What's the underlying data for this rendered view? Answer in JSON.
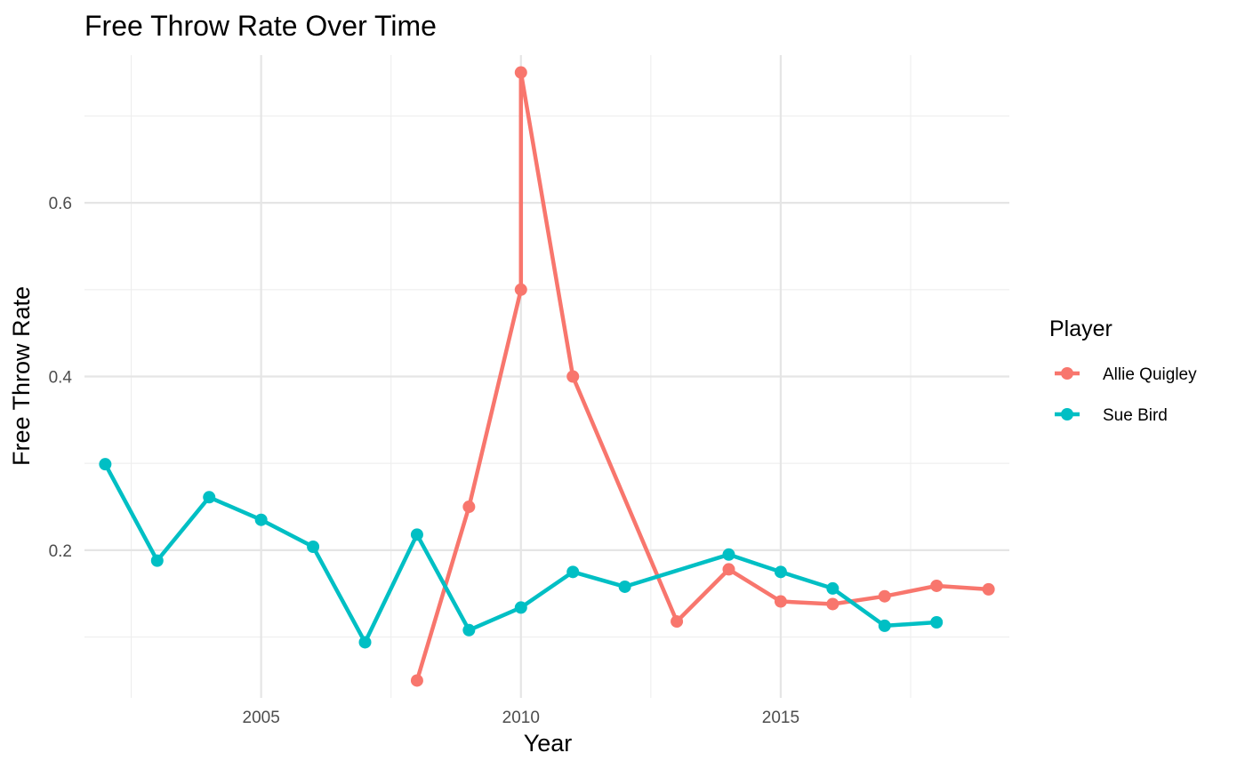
{
  "chart_data": {
    "type": "line",
    "title": "Free Throw Rate Over Time",
    "xlabel": "Year",
    "ylabel": "Free Throw Rate",
    "xlim": [
      2001.6,
      2019.4
    ],
    "ylim": [
      0.03,
      0.77
    ],
    "x_ticks": [
      2005,
      2010,
      2015
    ],
    "y_ticks": [
      0.2,
      0.4,
      0.6
    ],
    "grid": true,
    "legend_title": "Player",
    "legend_position": "right",
    "series": [
      {
        "name": "Allie Quigley",
        "color": "#F8766D",
        "points": [
          [
            2008,
            0.05
          ],
          [
            2009,
            0.25
          ],
          [
            2010,
            0.5
          ],
          [
            2010,
            0.75
          ],
          [
            2011,
            0.4
          ],
          [
            2013,
            0.118
          ],
          [
            2014,
            0.178
          ],
          [
            2015,
            0.141
          ],
          [
            2016,
            0.138
          ],
          [
            2017,
            0.147
          ],
          [
            2018,
            0.159
          ],
          [
            2019,
            0.155
          ]
        ]
      },
      {
        "name": "Sue Bird",
        "color": "#00BFC4",
        "points": [
          [
            2002,
            0.299
          ],
          [
            2003,
            0.188
          ],
          [
            2004,
            0.261
          ],
          [
            2005,
            0.235
          ],
          [
            2006,
            0.204
          ],
          [
            2007,
            0.094
          ],
          [
            2008,
            0.218
          ],
          [
            2009,
            0.108
          ],
          [
            2010,
            0.134
          ],
          [
            2011,
            0.175
          ],
          [
            2012,
            0.158
          ],
          [
            2014,
            0.195
          ],
          [
            2015,
            0.175
          ],
          [
            2016,
            0.156
          ],
          [
            2017,
            0.113
          ],
          [
            2018,
            0.117
          ]
        ]
      }
    ]
  }
}
